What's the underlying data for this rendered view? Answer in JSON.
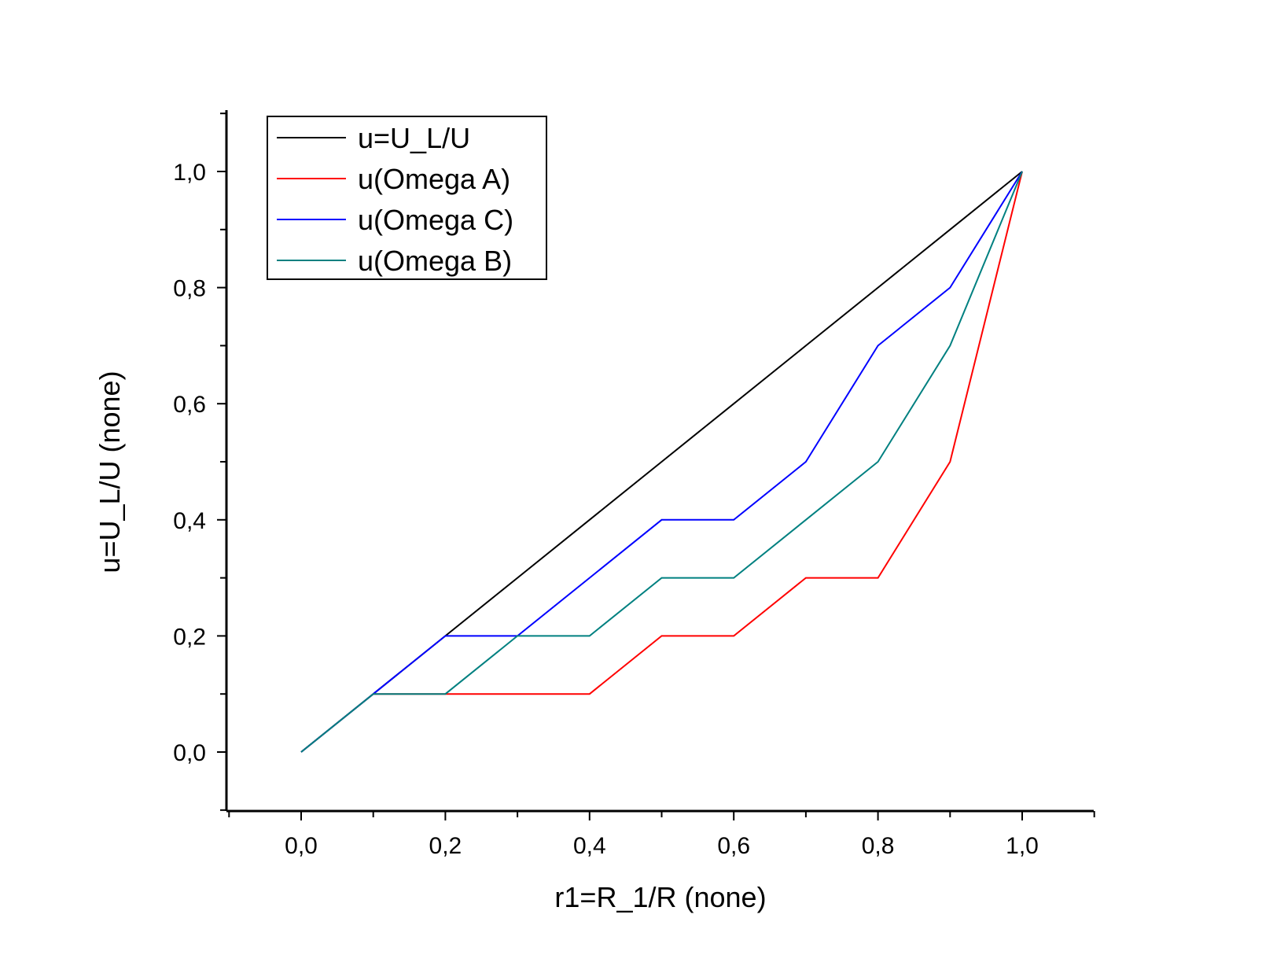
{
  "chart_data": {
    "type": "line",
    "xlabel": "r1=R_1/R (none)",
    "ylabel": "u=U_L/U (none)",
    "xlim": [
      -0.1,
      1.1
    ],
    "ylim": [
      -0.1,
      1.1
    ],
    "xticks": [
      0.0,
      0.2,
      0.4,
      0.6,
      0.8,
      1.0
    ],
    "xtick_labels": [
      "0,0",
      "0,2",
      "0,4",
      "0,6",
      "0,8",
      "1,0"
    ],
    "yticks": [
      0.0,
      0.2,
      0.4,
      0.6,
      0.8,
      1.0
    ],
    "ytick_labels": [
      "0,0",
      "0,2",
      "0,4",
      "0,6",
      "0,8",
      "1,0"
    ],
    "grid": false,
    "legend_position": "top-left",
    "series": [
      {
        "name": "u=U_L/U",
        "color": "#000000",
        "x": [
          0.0,
          0.1,
          0.2,
          0.3,
          0.4,
          0.5,
          0.6,
          0.7,
          0.8,
          0.9,
          1.0
        ],
        "y": [
          0.0,
          0.1,
          0.2,
          0.3,
          0.4,
          0.5,
          0.6,
          0.7,
          0.8,
          0.9,
          1.0
        ]
      },
      {
        "name": "u(Omega A)",
        "color": "#ff0000",
        "x": [
          0.0,
          0.1,
          0.2,
          0.3,
          0.4,
          0.5,
          0.6,
          0.7,
          0.8,
          0.9,
          1.0
        ],
        "y": [
          0.0,
          0.1,
          0.1,
          0.1,
          0.1,
          0.2,
          0.2,
          0.3,
          0.3,
          0.5,
          1.0
        ]
      },
      {
        "name": "u(Omega C)",
        "color": "#0000ff",
        "x": [
          0.0,
          0.1,
          0.2,
          0.3,
          0.4,
          0.5,
          0.6,
          0.7,
          0.8,
          0.9,
          1.0
        ],
        "y": [
          0.0,
          0.1,
          0.2,
          0.2,
          0.3,
          0.4,
          0.4,
          0.5,
          0.7,
          0.8,
          1.0
        ]
      },
      {
        "name": "u(Omega B)",
        "color": "#008080",
        "x": [
          0.0,
          0.1,
          0.2,
          0.3,
          0.4,
          0.5,
          0.6,
          0.7,
          0.8,
          0.9,
          1.0
        ],
        "y": [
          0.0,
          0.1,
          0.1,
          0.2,
          0.2,
          0.3,
          0.3,
          0.4,
          0.5,
          0.7,
          1.0
        ]
      }
    ]
  }
}
